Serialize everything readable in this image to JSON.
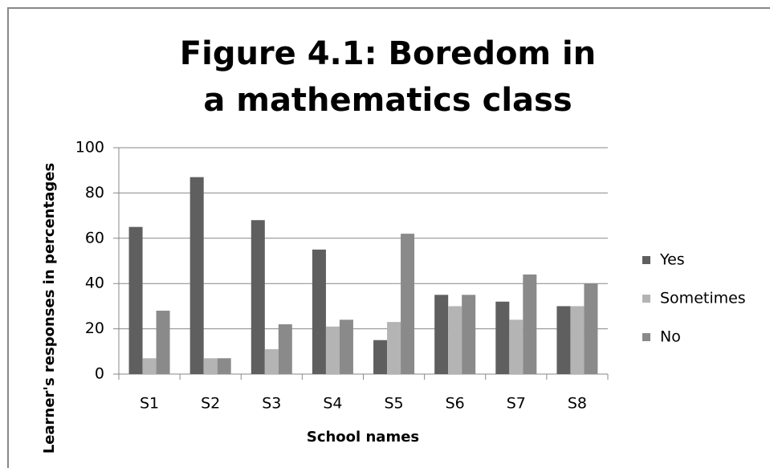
{
  "chart_data": {
    "type": "bar",
    "title": "Figure 4.1: Boredom in a mathematics class",
    "x_label": "School names",
    "y_label": "Learner's responses in percentages",
    "categories": [
      "S1",
      "S2",
      "S3",
      "S4",
      "S5",
      "S6",
      "S7",
      "S8"
    ],
    "series": [
      {
        "name": "Yes",
        "color": "#5f5f5f",
        "values": [
          65,
          87,
          68,
          55,
          15,
          35,
          32,
          30
        ]
      },
      {
        "name": "Sometimes",
        "color": "#b4b4b4",
        "values": [
          7,
          7,
          11,
          21,
          23,
          30,
          24,
          30
        ]
      },
      {
        "name": "No",
        "color": "#8a8a8a",
        "values": [
          28,
          7,
          22,
          24,
          62,
          35,
          44,
          40
        ]
      }
    ],
    "ylim": [
      0,
      100
    ],
    "yticks": [
      0,
      20,
      40,
      60,
      80,
      100
    ],
    "grid": true,
    "legend": "right"
  }
}
